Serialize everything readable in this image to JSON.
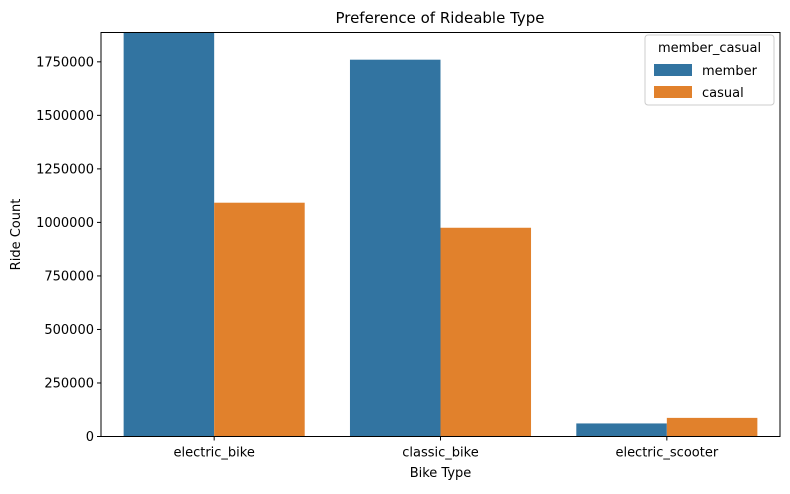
{
  "chart_data": {
    "type": "bar",
    "title": "Preference of Rideable Type",
    "xlabel": "Bike Type",
    "ylabel": "Ride Count",
    "categories": [
      "electric_bike",
      "classic_bike",
      "electric_scooter"
    ],
    "series": [
      {
        "name": "member",
        "values": [
          1887000,
          1760000,
          61000
        ],
        "color": "#3274a1"
      },
      {
        "name": "casual",
        "values": [
          1092000,
          975000,
          87000
        ],
        "color": "#e1812c"
      }
    ],
    "ylim": [
      0,
      1887000
    ],
    "yticks": [
      0,
      250000,
      500000,
      750000,
      1000000,
      1250000,
      1500000,
      1750000
    ],
    "ytick_labels": [
      "0",
      "250000",
      "500000",
      "750000",
      "1000000",
      "1250000",
      "1500000",
      "1750000"
    ],
    "grid": false,
    "legend": {
      "title": "member_casual",
      "placement": "top-right"
    }
  }
}
